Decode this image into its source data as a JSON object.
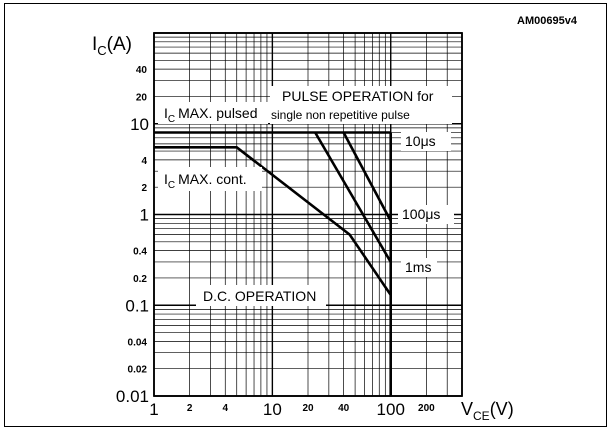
{
  "figure_code": "AM00695v4",
  "chart_data": {
    "type": "line",
    "title": "",
    "xlabel_main": "V",
    "xlabel_sub": "CE",
    "xlabel_unit": "(V)",
    "ylabel_main": "I",
    "ylabel_sub": "C",
    "ylabel_unit": "(A)",
    "x_scale": "log",
    "y_scale": "log",
    "xlim": [
      1,
      400
    ],
    "ylim": [
      0.01,
      100
    ],
    "grid": true,
    "x_ticks": [
      {
        "value": 1,
        "label": "1",
        "major": true
      },
      {
        "value": 2,
        "label": "2",
        "major": false
      },
      {
        "value": 4,
        "label": "4",
        "major": false
      },
      {
        "value": 10,
        "label": "10",
        "major": true
      },
      {
        "value": 20,
        "label": "20",
        "major": false
      },
      {
        "value": 40,
        "label": "40",
        "major": false
      },
      {
        "value": 100,
        "label": "100",
        "major": true
      },
      {
        "value": 200,
        "label": "200",
        "major": false
      }
    ],
    "y_ticks": [
      {
        "value": 0.01,
        "label": "0.01",
        "major": true
      },
      {
        "value": 0.02,
        "label": "0.02",
        "major": false
      },
      {
        "value": 0.04,
        "label": "0.04",
        "major": false
      },
      {
        "value": 0.1,
        "label": "0.1",
        "major": true
      },
      {
        "value": 0.2,
        "label": "0.2",
        "major": false
      },
      {
        "value": 0.4,
        "label": "0.4",
        "major": false
      },
      {
        "value": 1,
        "label": "1",
        "major": true
      },
      {
        "value": 2,
        "label": "2",
        "major": false
      },
      {
        "value": 4,
        "label": "4",
        "major": false
      },
      {
        "value": 10,
        "label": "10",
        "major": true
      },
      {
        "value": 20,
        "label": "20",
        "major": false
      },
      {
        "value": 40,
        "label": "40",
        "major": false
      }
    ],
    "series": [
      {
        "points": [
          [
            1,
            8
          ],
          [
            100,
            8
          ]
        ]
      },
      {
        "points": [
          [
            1,
            5.5
          ],
          [
            5,
            5.5
          ],
          [
            45,
            0.6
          ],
          [
            100,
            0.13
          ]
        ]
      },
      {
        "points": [
          [
            23,
            8
          ],
          [
            100,
            0.3
          ]
        ]
      },
      {
        "points": [
          [
            40,
            8
          ],
          [
            100,
            0.85
          ]
        ]
      },
      {
        "points": [
          [
            100,
            0.01
          ],
          [
            100,
            8
          ]
        ]
      }
    ],
    "annotations": [
      {
        "id": "pulsed",
        "main": "I",
        "sub": "C",
        "rest": "MAX. pulsed"
      },
      {
        "id": "pulse1",
        "text": "PULSE OPERATION for"
      },
      {
        "id": "pulse2",
        "text": "single non repetitive pulse"
      },
      {
        "id": "cont",
        "main": "I",
        "sub": "C",
        "rest": "MAX. cont."
      },
      {
        "id": "t10",
        "text": "10μs"
      },
      {
        "id": "t100",
        "text": "100μs"
      },
      {
        "id": "t1ms",
        "text": "1ms"
      },
      {
        "id": "dc",
        "text": "D.C. OPERATION"
      }
    ]
  }
}
